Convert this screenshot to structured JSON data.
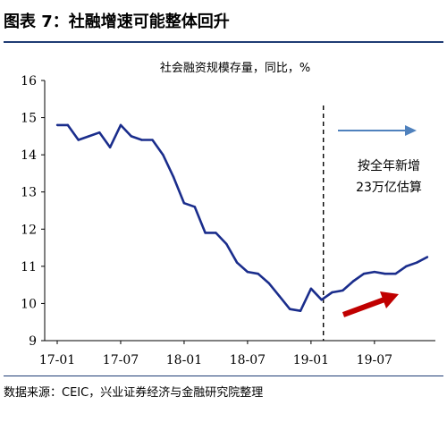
{
  "figure_title": "图表  7：社融增速可能整体回升",
  "source": "数据来源：CEIC，兴业证券经济与金融研究院整理",
  "colors": {
    "series": "#1a2d8c",
    "rule": "#1f3c74",
    "arrow_blue": "#4f81bd",
    "arrow_red": "#c00000"
  },
  "chart_data": {
    "type": "line",
    "title": "社会融资规模存量，同比，%",
    "ylim": [
      9,
      16
    ],
    "yticks": [
      9,
      10,
      11,
      12,
      13,
      14,
      15,
      16
    ],
    "xticks": [
      "17-01",
      "17-07",
      "18-01",
      "18-07",
      "19-01",
      "19-07"
    ],
    "xtick_index": [
      0,
      6,
      12,
      18,
      24,
      30
    ],
    "x": [
      "17-01",
      "17-02",
      "17-03",
      "17-04",
      "17-05",
      "17-06",
      "17-07",
      "17-08",
      "17-09",
      "17-10",
      "17-11",
      "17-12",
      "18-01",
      "18-02",
      "18-03",
      "18-04",
      "18-05",
      "18-06",
      "18-07",
      "18-08",
      "18-09",
      "18-10",
      "18-11",
      "18-12",
      "19-01",
      "19-02",
      "19-03",
      "19-04",
      "19-05",
      "19-06",
      "19-07",
      "19-08",
      "19-09",
      "19-10",
      "19-11",
      "19-12"
    ],
    "series": [
      {
        "values": [
          14.8,
          14.8,
          14.4,
          14.5,
          14.6,
          14.2,
          14.8,
          14.5,
          14.4,
          14.4,
          14.0,
          13.4,
          12.7,
          12.6,
          11.9,
          11.9,
          11.6,
          11.1,
          10.85,
          10.8,
          10.55,
          10.2,
          9.85,
          9.8,
          10.4,
          10.1,
          10.3,
          10.35,
          10.6,
          10.8,
          10.85,
          10.8,
          10.8,
          11.0,
          11.1,
          11.25
        ]
      }
    ],
    "forecast_divider_at": "19-02",
    "annotation": [
      "按全年新增",
      "23万亿估算"
    ]
  }
}
